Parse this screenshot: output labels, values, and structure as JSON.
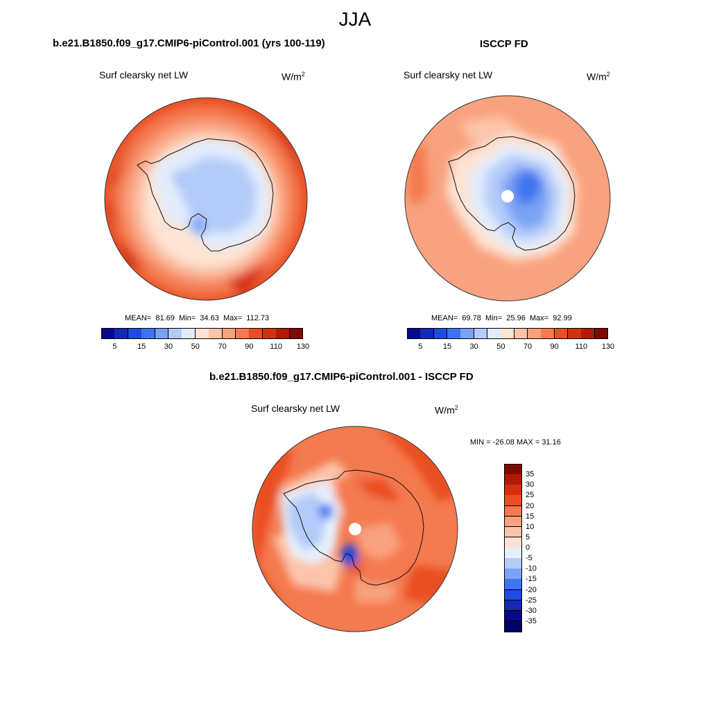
{
  "season": "JJA",
  "units_text": "W/m",
  "units_exp": "2",
  "variable_label": "Surf clearsky net LW",
  "panels": {
    "model": {
      "title": "b.e21.B1850.f09_g17.CMIP6-piControl.001 (yrs 100-119)",
      "stats": {
        "mean_label": "MEAN=",
        "mean": "81.69",
        "min_label": "Min=",
        "min": "34.63",
        "max_label": "Max=",
        "max": "112.73"
      }
    },
    "obs": {
      "title": "ISCCP FD",
      "stats": {
        "mean_label": "MEAN=",
        "mean": "69.78",
        "min_label": "Min=",
        "min": "25.96",
        "max_label": "Max=",
        "max": "92.99"
      }
    },
    "diff": {
      "title": "b.e21.B1850.f09_g17.CMIP6-piControl.001 - ISCCP FD",
      "stats_text": "MIN = -26.08 MAX =  31.16"
    }
  },
  "colorbars": {
    "abs": {
      "labels": [
        "5",
        "15",
        "30",
        "50",
        "70",
        "90",
        "110",
        "130"
      ],
      "colors": [
        "#08088a",
        "#1428b4",
        "#1f4be0",
        "#3f74f0",
        "#7aa2f5",
        "#b4cbf9",
        "#e0ecfc",
        "#fde3d3",
        "#fcc5ab",
        "#f9a27f",
        "#f47a4f",
        "#ea4f24",
        "#d62f0f",
        "#b01b07",
        "#7f0a04"
      ]
    },
    "diff": {
      "labels": [
        "35",
        "30",
        "25",
        "20",
        "15",
        "10",
        "5",
        "0",
        "-5",
        "-10",
        "-15",
        "-20",
        "-25",
        "-30",
        "-35"
      ],
      "colors": [
        "#7f0a04",
        "#b01b07",
        "#d62f0f",
        "#ea4f24",
        "#f47a4f",
        "#f9a27f",
        "#fcc5ab",
        "#fde3d3",
        "#e6f0fd",
        "#b4cbf9",
        "#7aa2f5",
        "#3f74f0",
        "#1f4be0",
        "#1428b4",
        "#08088a",
        "#000066"
      ]
    }
  }
}
